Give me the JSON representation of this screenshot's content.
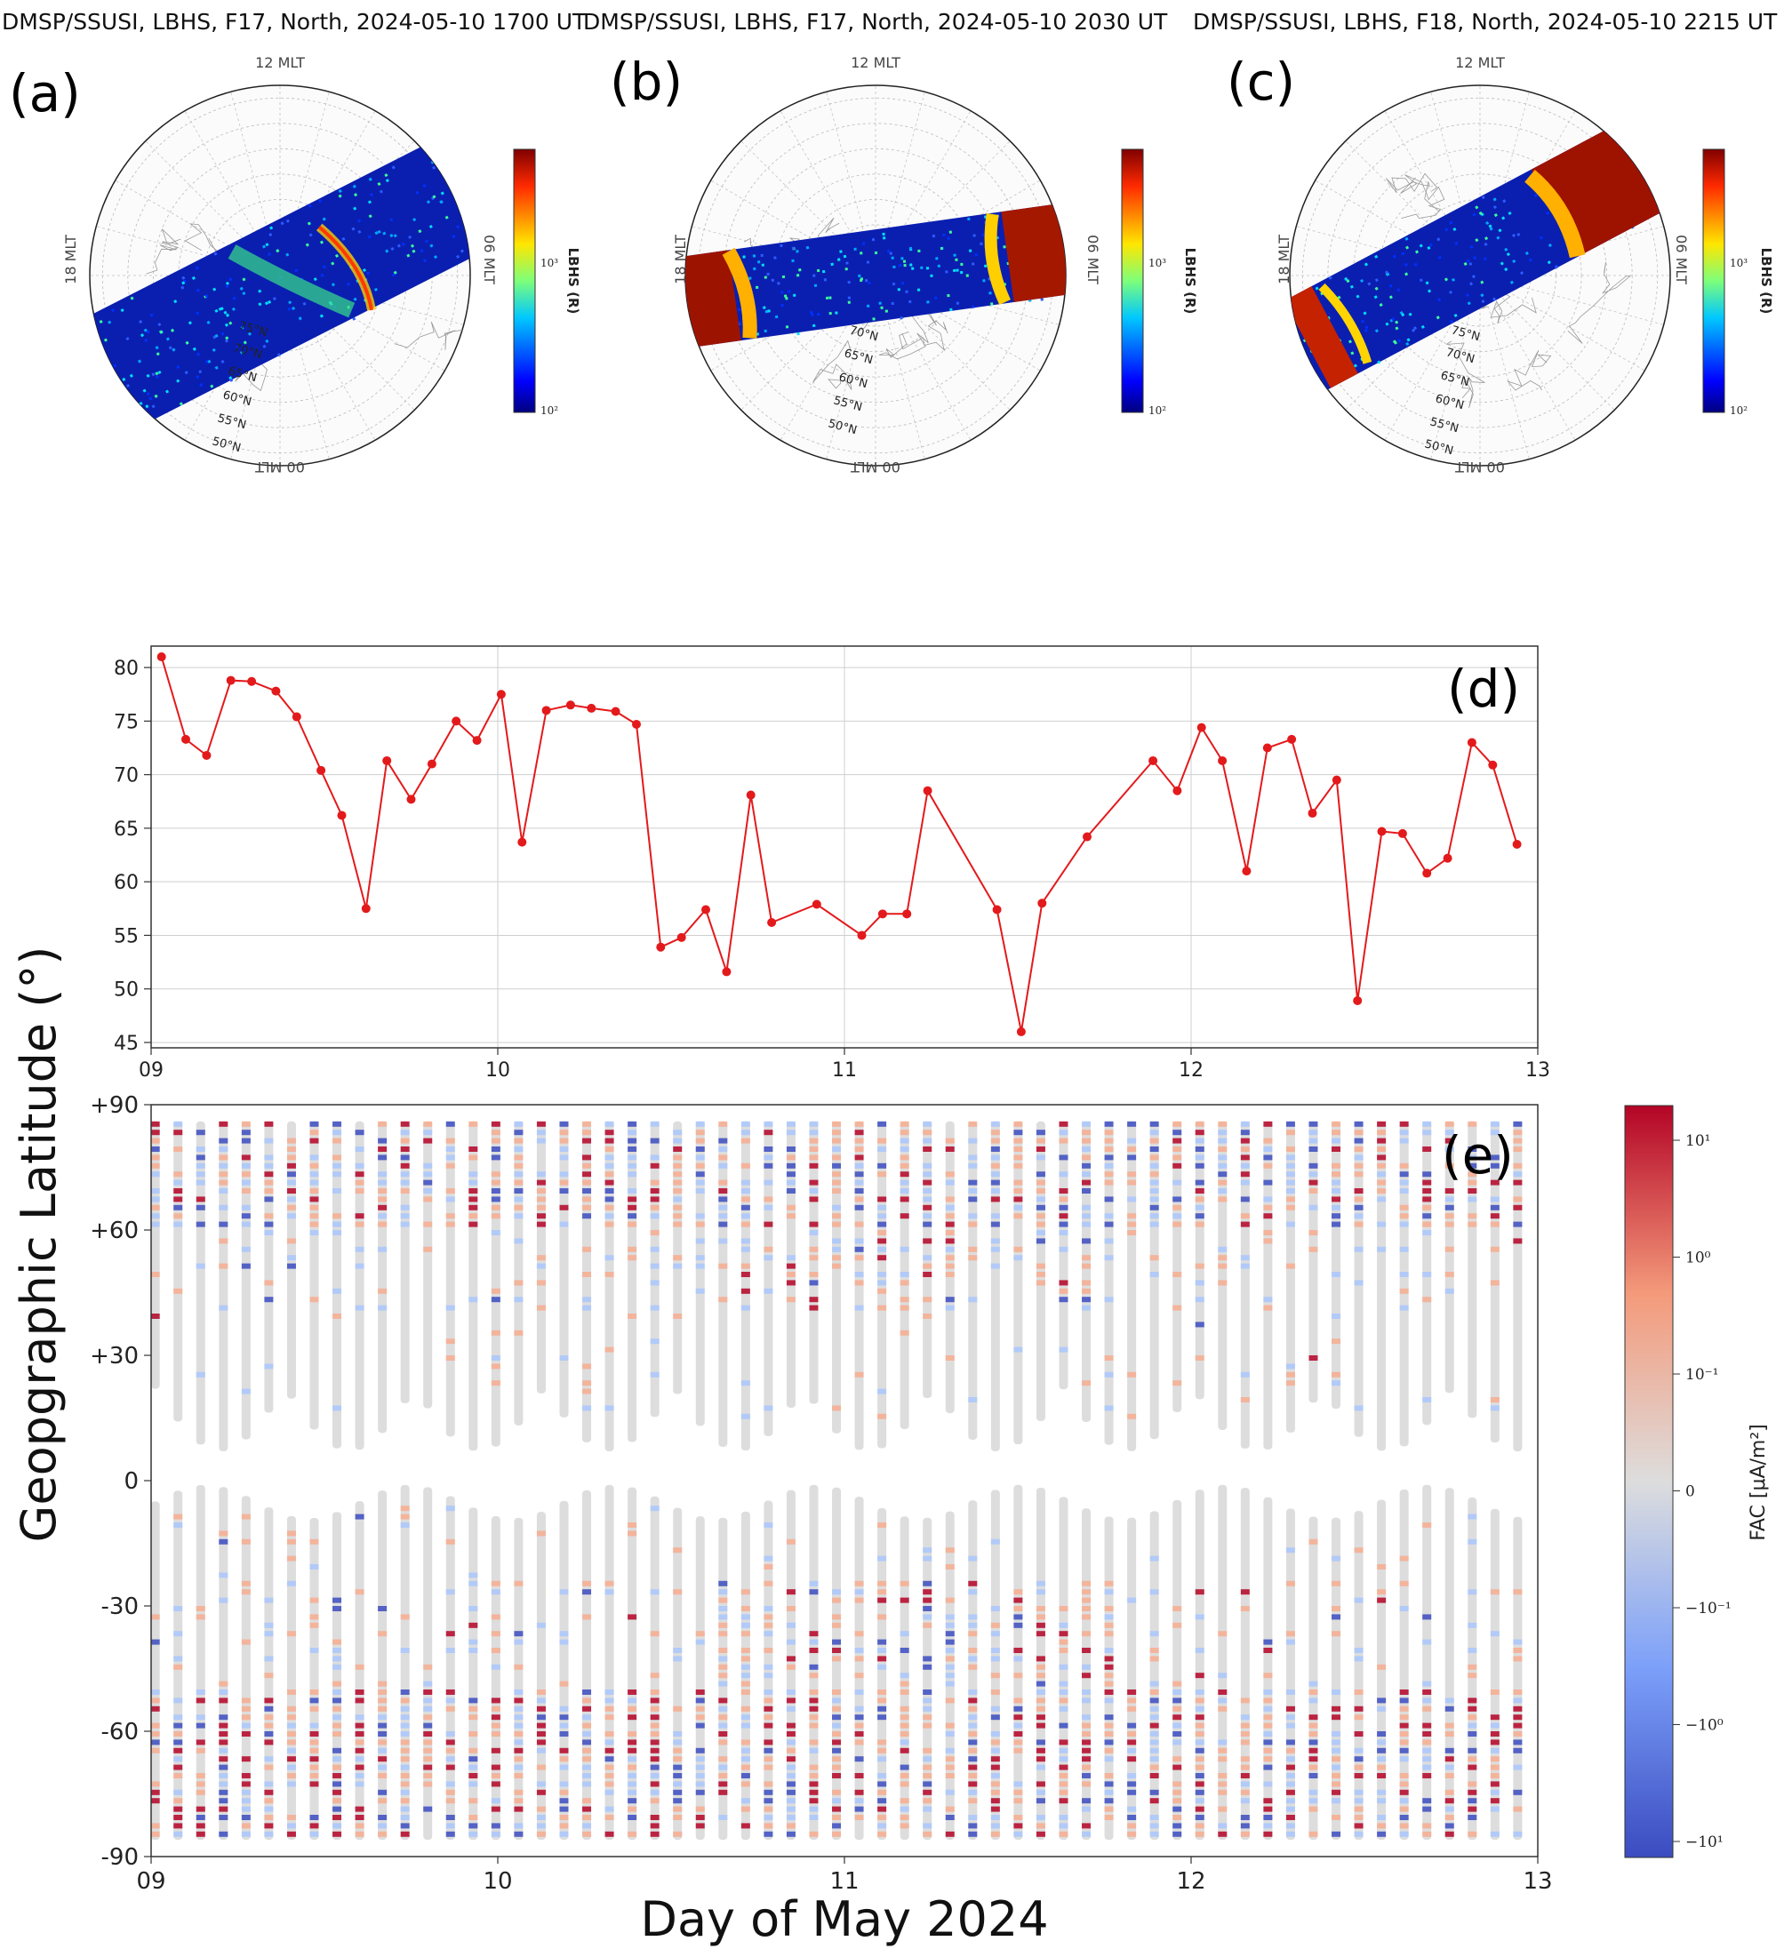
{
  "polar_panels": [
    {
      "id": "a",
      "label": "(a)",
      "title": "DMSP/SSUSI, LBHS, F17, North, 2024-05-10 1700 UT",
      "swath_angle": -27,
      "halfwidth": 0.32,
      "swath_offset": 0.06
    },
    {
      "id": "b",
      "label": "(b)",
      "title": "DMSP/SSUSI, LBHS, F17, North, 2024-05-10 2030 UT",
      "swath_angle": -8,
      "halfwidth": 0.24,
      "swath_offset": 0.0
    },
    {
      "id": "c",
      "label": "(c)",
      "title": "DMSP/SSUSI, LBHS, F18, North, 2024-05-10 2215 UT",
      "swath_angle": -28,
      "halfwidth": 0.26,
      "swath_offset": -0.12
    }
  ],
  "polar_common": {
    "mlt_top": "12 MLT",
    "mlt_left": "18 MLT",
    "mlt_right": "06 MLT",
    "mlt_bottom": "00 MLT",
    "lat_labels": [
      "75°N",
      "70°N",
      "65°N",
      "60°N",
      "55°N",
      "50°N"
    ],
    "colorbar_label": "LBHS (R)",
    "colorbar_ticks": [
      "10³",
      "10²"
    ]
  },
  "chart_data": [
    {
      "type": "line",
      "panel": "(d)",
      "xlim": [
        9,
        13
      ],
      "ylim": [
        45,
        82
      ],
      "xticks": [
        "09",
        "10",
        "11",
        "12",
        "13"
      ],
      "yticks": [
        "45",
        "50",
        "55",
        "60",
        "65",
        "70",
        "75",
        "80"
      ],
      "color": "#e31a1c",
      "x": [
        9.03,
        9.1,
        9.16,
        9.23,
        9.29,
        9.36,
        9.42,
        9.49,
        9.55,
        9.62,
        9.68,
        9.75,
        9.81,
        9.88,
        9.94,
        10.01,
        10.07,
        10.14,
        10.21,
        10.27,
        10.34,
        10.4,
        10.47,
        10.53,
        10.6,
        10.66,
        10.73,
        10.79,
        10.92,
        11.05,
        11.11,
        11.18,
        11.24,
        11.44,
        11.51,
        11.57,
        11.7,
        11.89,
        11.96,
        12.03,
        12.09,
        12.16,
        12.22,
        12.29,
        12.35,
        12.42,
        12.48,
        12.55,
        12.61,
        12.68,
        12.74,
        12.81,
        12.87,
        12.94
      ],
      "y": [
        81,
        73.3,
        71.8,
        78.8,
        78.7,
        77.8,
        75.4,
        70.4,
        66.2,
        57.5,
        71.3,
        67.7,
        71,
        75,
        73.2,
        77.5,
        63.7,
        76,
        76.5,
        76.2,
        75.9,
        74.7,
        53.9,
        54.8,
        57.4,
        51.6,
        68.1,
        56.2,
        57.9,
        55,
        57,
        57,
        68.5,
        57.4,
        46,
        58,
        64.2,
        71.3,
        68.5,
        74.4,
        71.3,
        61,
        72.5,
        73.3,
        66.4,
        69.5,
        48.9,
        64.7,
        64.5,
        60.8,
        62.2,
        73,
        70.9,
        63.5
      ]
    },
    {
      "type": "heatmap",
      "panel": "(e)",
      "xlim": [
        9,
        13
      ],
      "ylim": [
        -90,
        90
      ],
      "xticks": [
        "09",
        "10",
        "11",
        "12",
        "13"
      ],
      "yticks": [
        "+90",
        "+60",
        "+30",
        "0",
        "-30",
        "-60",
        "-90"
      ],
      "xlabel": "Day of May 2024",
      "ylabel": "Geopgraphic Latitude (°)",
      "colorbar_label": "FAC [μA/m²]",
      "colorbar_ticks": [
        "10¹",
        "10⁰",
        "10⁻¹",
        "0",
        "−10⁻¹",
        "−10⁰",
        "−10¹"
      ],
      "colormap_colors": [
        "#b40426",
        "#f7ad90",
        "#dddddd",
        "#aac7fd",
        "#3b4cc0"
      ],
      "pass_spacing_days": 0.0655,
      "north_lower_bound_lat": 22,
      "south_upper_bound_lat": -5
    }
  ]
}
